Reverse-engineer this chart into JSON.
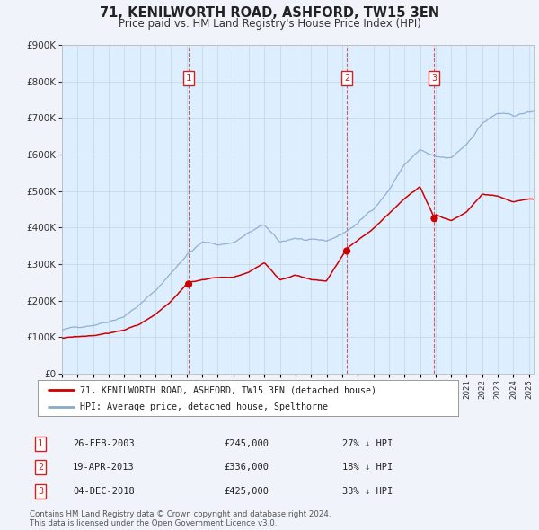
{
  "title": "71, KENILWORTH ROAD, ASHFORD, TW15 3EN",
  "subtitle": "Price paid vs. HM Land Registry's House Price Index (HPI)",
  "background_color": "#f0f4fa",
  "plot_bg_color": "#ddeeff",
  "grid_color": "#c8d8e8",
  "red_line_label": "71, KENILWORTH ROAD, ASHFORD, TW15 3EN (detached house)",
  "blue_line_label": "HPI: Average price, detached house, Spelthorne",
  "transactions": [
    {
      "num": 1,
      "date": "26-FEB-2003",
      "date_val": 2003.14,
      "price": 245000,
      "pct": "27%",
      "direction": "↓"
    },
    {
      "num": 2,
      "date": "19-APR-2013",
      "date_val": 2013.3,
      "price": 336000,
      "pct": "18%",
      "direction": "↓"
    },
    {
      "num": 3,
      "date": "04-DEC-2018",
      "date_val": 2018.92,
      "price": 425000,
      "pct": "33%",
      "direction": "↓"
    }
  ],
  "footer_line1": "Contains HM Land Registry data © Crown copyright and database right 2024.",
  "footer_line2": "This data is licensed under the Open Government Licence v3.0.",
  "ylim": [
    0,
    900000
  ],
  "xlim_start": 1995.0,
  "xlim_end": 2025.3,
  "red_color": "#cc0000",
  "blue_color": "#88aacc",
  "vline_color": "#cc4444",
  "box_color": "#cc2222",
  "hpi_base": [
    [
      1995,
      120000
    ],
    [
      1996,
      126000
    ],
    [
      1997,
      137000
    ],
    [
      1998,
      150000
    ],
    [
      1999,
      168000
    ],
    [
      2000,
      200000
    ],
    [
      2001,
      237000
    ],
    [
      2002,
      285000
    ],
    [
      2003,
      338000
    ],
    [
      2004,
      372000
    ],
    [
      2005,
      365000
    ],
    [
      2006,
      372000
    ],
    [
      2007,
      400000
    ],
    [
      2008,
      420000
    ],
    [
      2009,
      368000
    ],
    [
      2010,
      382000
    ],
    [
      2011,
      373000
    ],
    [
      2012,
      368000
    ],
    [
      2013,
      388000
    ],
    [
      2014,
      418000
    ],
    [
      2015,
      458000
    ],
    [
      2016,
      512000
    ],
    [
      2017,
      582000
    ],
    [
      2018,
      622000
    ],
    [
      2019,
      598000
    ],
    [
      2020,
      592000
    ],
    [
      2021,
      632000
    ],
    [
      2022,
      692000
    ],
    [
      2023,
      718000
    ],
    [
      2024,
      708000
    ],
    [
      2025,
      718000
    ]
  ],
  "red_base": [
    [
      1995,
      98000
    ],
    [
      1996,
      100000
    ],
    [
      1997,
      104000
    ],
    [
      1998,
      110000
    ],
    [
      1999,
      118000
    ],
    [
      2000,
      136000
    ],
    [
      2001,
      160000
    ],
    [
      2002,
      195000
    ],
    [
      2003.14,
      245000
    ],
    [
      2004,
      252000
    ],
    [
      2005,
      258000
    ],
    [
      2006,
      260000
    ],
    [
      2007,
      272000
    ],
    [
      2008,
      298000
    ],
    [
      2009,
      252000
    ],
    [
      2010,
      265000
    ],
    [
      2011,
      252000
    ],
    [
      2012,
      248000
    ],
    [
      2013.3,
      336000
    ],
    [
      2014,
      358000
    ],
    [
      2015,
      392000
    ],
    [
      2016,
      432000
    ],
    [
      2017,
      478000
    ],
    [
      2018,
      512000
    ],
    [
      2018.92,
      425000
    ],
    [
      2019,
      435000
    ],
    [
      2020,
      418000
    ],
    [
      2021,
      442000
    ],
    [
      2022,
      492000
    ],
    [
      2023,
      488000
    ],
    [
      2024,
      472000
    ],
    [
      2025,
      478000
    ]
  ]
}
